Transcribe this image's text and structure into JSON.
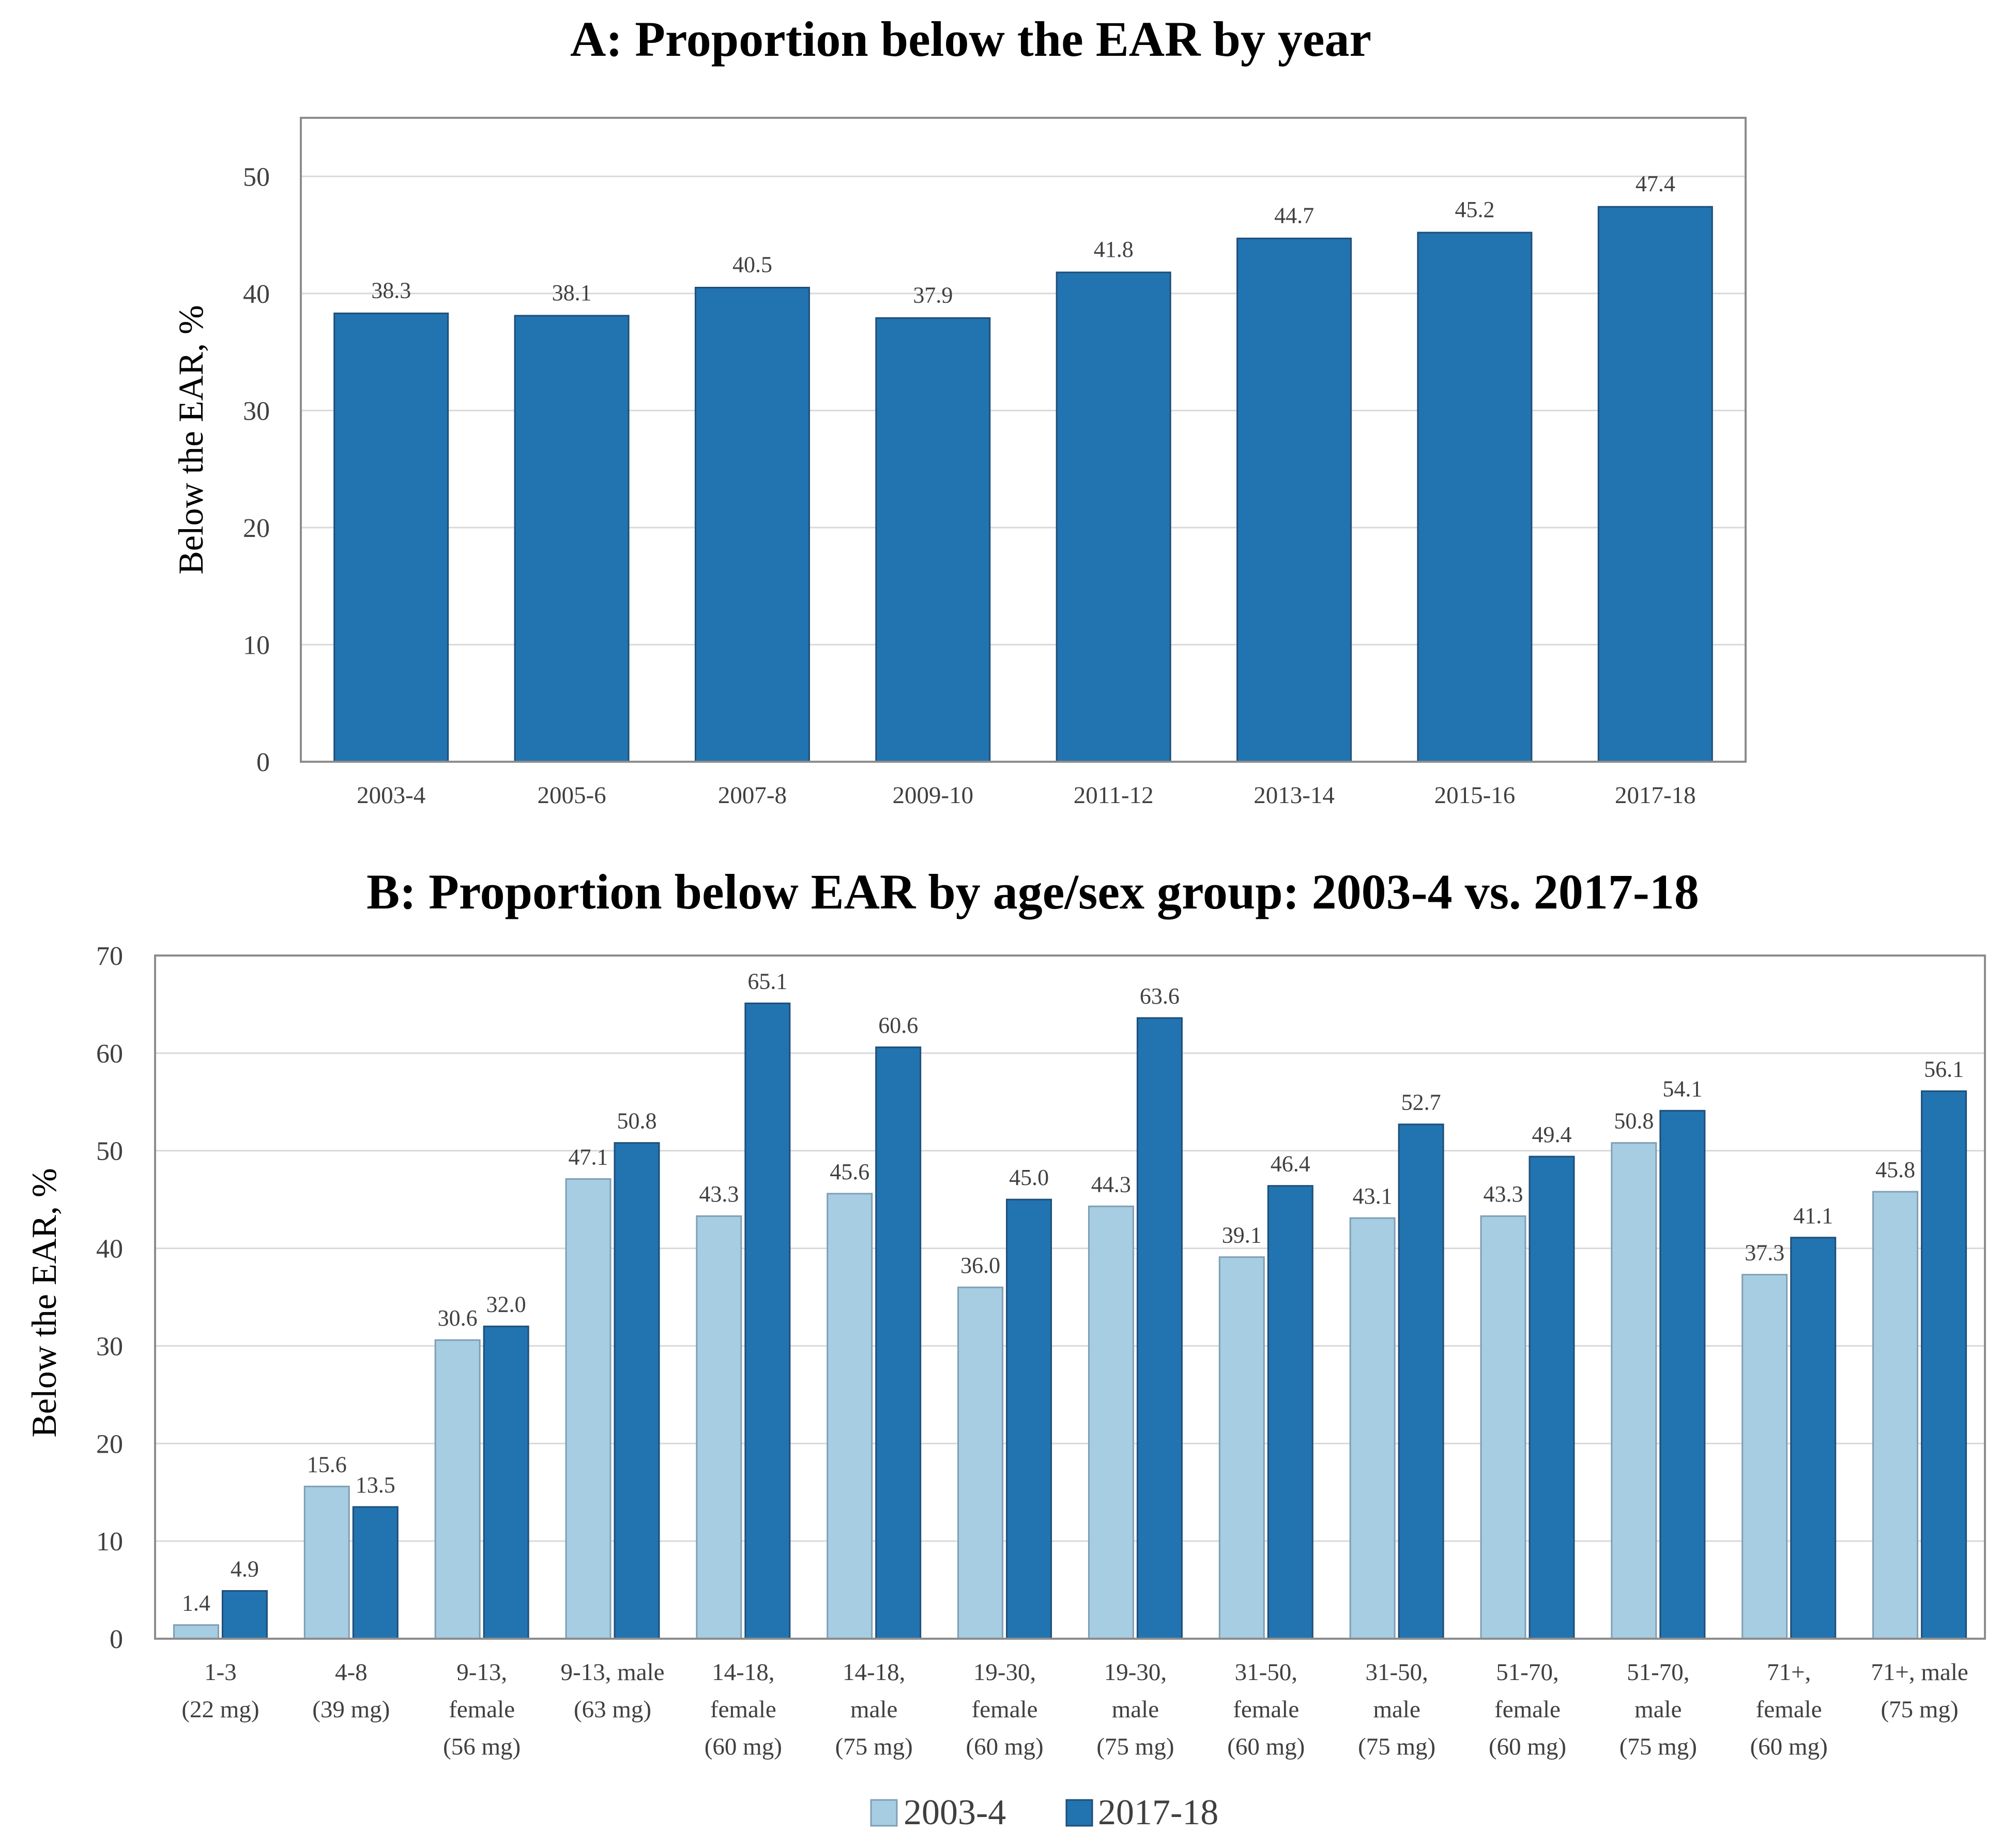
{
  "colors": {
    "series_single": "#2274b0",
    "series_2003": "#a6cde2",
    "series_2017": "#2274b0"
  },
  "chart_data": [
    {
      "type": "bar",
      "title": "A: Proportion below the EAR by year",
      "ylabel": "Below the EAR, %",
      "xlabel": "",
      "ylim": [
        0,
        55
      ],
      "yticks": [
        "0",
        "10",
        "20",
        "30",
        "40",
        "50"
      ],
      "grid": true,
      "categories": [
        "2003-4",
        "2005-6",
        "2007-8",
        "2009-10",
        "2011-12",
        "2013-14",
        "2015-16",
        "2017-18"
      ],
      "values": [
        38.3,
        38.1,
        40.5,
        37.9,
        41.8,
        44.7,
        45.2,
        47.4
      ],
      "value_labels": [
        "38.3",
        "38.1",
        "40.5",
        "37.9",
        "41.8",
        "44.7",
        "45.2",
        "47.4"
      ]
    },
    {
      "type": "bar",
      "title": "B: Proportion below EAR by age/sex group: 2003-4 vs. 2017-18",
      "ylabel": "Below the EAR, %",
      "xlabel": "",
      "ylim": [
        0,
        70
      ],
      "yticks": [
        "0",
        "10",
        "20",
        "30",
        "40",
        "50",
        "60",
        "70"
      ],
      "grid": true,
      "legend": {
        "position": "bottom",
        "entries": [
          "2003-4",
          "2017-18"
        ]
      },
      "categories": [
        [
          "1-3",
          "(22 mg)"
        ],
        [
          "4-8",
          "(39 mg)"
        ],
        [
          "9-13,",
          "female",
          "(56 mg)"
        ],
        [
          "9-13, male",
          "(63 mg)"
        ],
        [
          "14-18,",
          "female",
          "(60 mg)"
        ],
        [
          "14-18,",
          "male",
          "(75 mg)"
        ],
        [
          "19-30,",
          "female",
          "(60 mg)"
        ],
        [
          "19-30,",
          "male",
          "(75 mg)"
        ],
        [
          "31-50,",
          "female",
          "(60 mg)"
        ],
        [
          "31-50,",
          "male",
          "(75 mg)"
        ],
        [
          "51-70,",
          "female",
          "(60 mg)"
        ],
        [
          "51-70,",
          "male",
          "(75 mg)"
        ],
        [
          "71+,",
          "female",
          "(60 mg)"
        ],
        [
          "71+, male",
          "(75 mg)"
        ]
      ],
      "series": [
        {
          "name": "2003-4",
          "values": [
            1.4,
            15.6,
            30.6,
            47.1,
            43.3,
            45.6,
            36.0,
            44.3,
            39.1,
            43.1,
            43.3,
            50.8,
            37.3,
            45.8
          ],
          "value_labels": [
            "1.4",
            "15.6",
            "30.6",
            "47.1",
            "43.3",
            "45.6",
            "36.0",
            "44.3",
            "39.1",
            "43.1",
            "43.3",
            "50.8",
            "37.3",
            "45.8"
          ]
        },
        {
          "name": "2017-18",
          "values": [
            4.9,
            13.5,
            32.0,
            50.8,
            65.1,
            60.6,
            45.0,
            63.6,
            46.4,
            52.7,
            49.4,
            54.1,
            41.1,
            56.1
          ],
          "value_labels": [
            "4.9",
            "13.5",
            "32.0",
            "50.8",
            "65.1",
            "60.6",
            "45.0",
            "63.6",
            "46.4",
            "52.7",
            "49.4",
            "54.1",
            "41.1",
            "56.1"
          ]
        }
      ]
    }
  ]
}
